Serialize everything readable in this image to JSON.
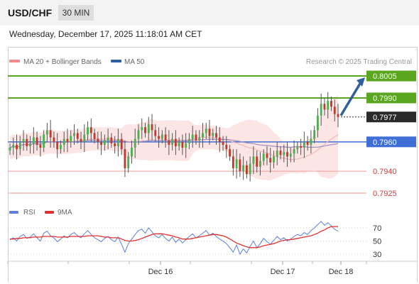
{
  "header": {
    "pair": "USD/CHF",
    "timeframe": "30 MIN"
  },
  "datetime": "Wednesday, December 17, 2025 11:18:01 AM CET",
  "copyright": "Research © 2025 Trading Central",
  "colors": {
    "support_resistance": "#5aa61e",
    "current_price": "#2a2a2a",
    "pivot": "#3f6fd6",
    "support_line": "#ef9a9a",
    "bollinger": "#fbdada",
    "ma50": "#9c8fbf",
    "arrow": "#2f5f9e",
    "rsi": "#5b7fdb",
    "rsi_ma": "#e03030"
  },
  "chart_data": [
    {
      "type": "candlestick",
      "legend": [
        {
          "name": "MA 20 + Bollinger Bands",
          "color": "#ef8a8a"
        },
        {
          "name": "MA 50",
          "color": "#2f5f9e"
        }
      ],
      "legend_position": "top-left",
      "x_ticks": [
        "Dec 16",
        "Dec 17",
        "Dec 18"
      ],
      "levels": [
        {
          "value": "0.8005",
          "kind": "resistance",
          "style": "green-box"
        },
        {
          "value": "0.7990",
          "kind": "resistance",
          "style": "green-box"
        },
        {
          "value": "0.7977",
          "kind": "current",
          "style": "dark-box"
        },
        {
          "value": "0.7960",
          "kind": "pivot",
          "style": "blue-box"
        },
        {
          "value": "0.7940",
          "kind": "support",
          "style": "red-text"
        },
        {
          "value": "0.7925",
          "kind": "support",
          "style": "red-text"
        }
      ],
      "projection": {
        "from": 0.7977,
        "to": 0.8005,
        "direction": "up"
      },
      "series": [
        {
          "name": "USD/CHF",
          "close": [
            0.7956,
            0.7958,
            0.7955,
            0.796,
            0.7962,
            0.7957,
            0.7959,
            0.7963,
            0.7958,
            0.7956,
            0.7965,
            0.7968,
            0.7963,
            0.796,
            0.7955,
            0.7958,
            0.7962,
            0.796,
            0.7964,
            0.7966,
            0.7962,
            0.796,
            0.7965,
            0.797,
            0.7966,
            0.7962,
            0.796,
            0.7958,
            0.7961,
            0.7963,
            0.7959,
            0.7957,
            0.7962,
            0.7955,
            0.7942,
            0.795,
            0.7956,
            0.7962,
            0.7968,
            0.797,
            0.7966,
            0.7972,
            0.7968,
            0.7964,
            0.7962,
            0.7965,
            0.7961,
            0.7958,
            0.7962,
            0.7957,
            0.796,
            0.7956,
            0.7959,
            0.7962,
            0.7965,
            0.7961,
            0.7963,
            0.7966,
            0.7969,
            0.7964,
            0.7966,
            0.7963,
            0.796,
            0.7958,
            0.7955,
            0.795,
            0.7942,
            0.7948,
            0.794,
            0.7944,
            0.7938,
            0.7945,
            0.795,
            0.7943,
            0.7947,
            0.7952,
            0.7949,
            0.7946,
            0.795,
            0.7954,
            0.7951,
            0.7953,
            0.795,
            0.7952,
            0.7955,
            0.7957,
            0.7956,
            0.796,
            0.7958,
            0.7962,
            0.7968,
            0.7978,
            0.7986,
            0.7982,
            0.7988,
            0.7984,
            0.7979,
            0.7977
          ]
        }
      ]
    },
    {
      "type": "line",
      "legend": [
        {
          "name": "RSI",
          "color": "#5b7fdb"
        },
        {
          "name": "9MA",
          "color": "#e03030"
        }
      ],
      "y_ticks": [
        "70",
        "50",
        "30"
      ],
      "ylim": [
        20,
        80
      ],
      "series": [
        {
          "name": "RSI",
          "values": [
            52,
            55,
            50,
            57,
            60,
            54,
            56,
            61,
            55,
            50,
            62,
            65,
            58,
            55,
            49,
            53,
            58,
            55,
            60,
            63,
            58,
            55,
            61,
            66,
            60,
            55,
            52,
            49,
            54,
            57,
            52,
            49,
            56,
            45,
            33,
            46,
            53,
            60,
            66,
            68,
            62,
            70,
            64,
            58,
            55,
            60,
            54,
            50,
            56,
            48,
            53,
            47,
            52,
            57,
            61,
            55,
            58,
            62,
            66,
            59,
            62,
            57,
            53,
            50,
            46,
            40,
            33,
            44,
            30,
            38,
            32,
            42,
            50,
            40,
            46,
            54,
            49,
            45,
            51,
            57,
            52,
            55,
            50,
            53,
            57,
            60,
            58,
            63,
            60,
            66,
            70,
            75,
            80,
            74,
            78,
            73,
            68,
            65
          ]
        },
        {
          "name": "9MA",
          "values": [
            53,
            53,
            54,
            54,
            55,
            55,
            55,
            56,
            56,
            56,
            57,
            57,
            57,
            57,
            56,
            56,
            56,
            56,
            57,
            57,
            57,
            57,
            57,
            58,
            58,
            58,
            58,
            57,
            56,
            56,
            55,
            55,
            55,
            53,
            51,
            50,
            50,
            51,
            52,
            54,
            56,
            58,
            60,
            61,
            61,
            61,
            60,
            59,
            58,
            56,
            55,
            53,
            53,
            53,
            54,
            55,
            56,
            57,
            58,
            59,
            60,
            60,
            59,
            58,
            56,
            53,
            50,
            47,
            45,
            43,
            41,
            40,
            40,
            40,
            41,
            43,
            44,
            45,
            46,
            48,
            50,
            51,
            52,
            52,
            53,
            54,
            55,
            56,
            57,
            58,
            60,
            62,
            65,
            67,
            70,
            72,
            72,
            72
          ]
        }
      ]
    }
  ]
}
